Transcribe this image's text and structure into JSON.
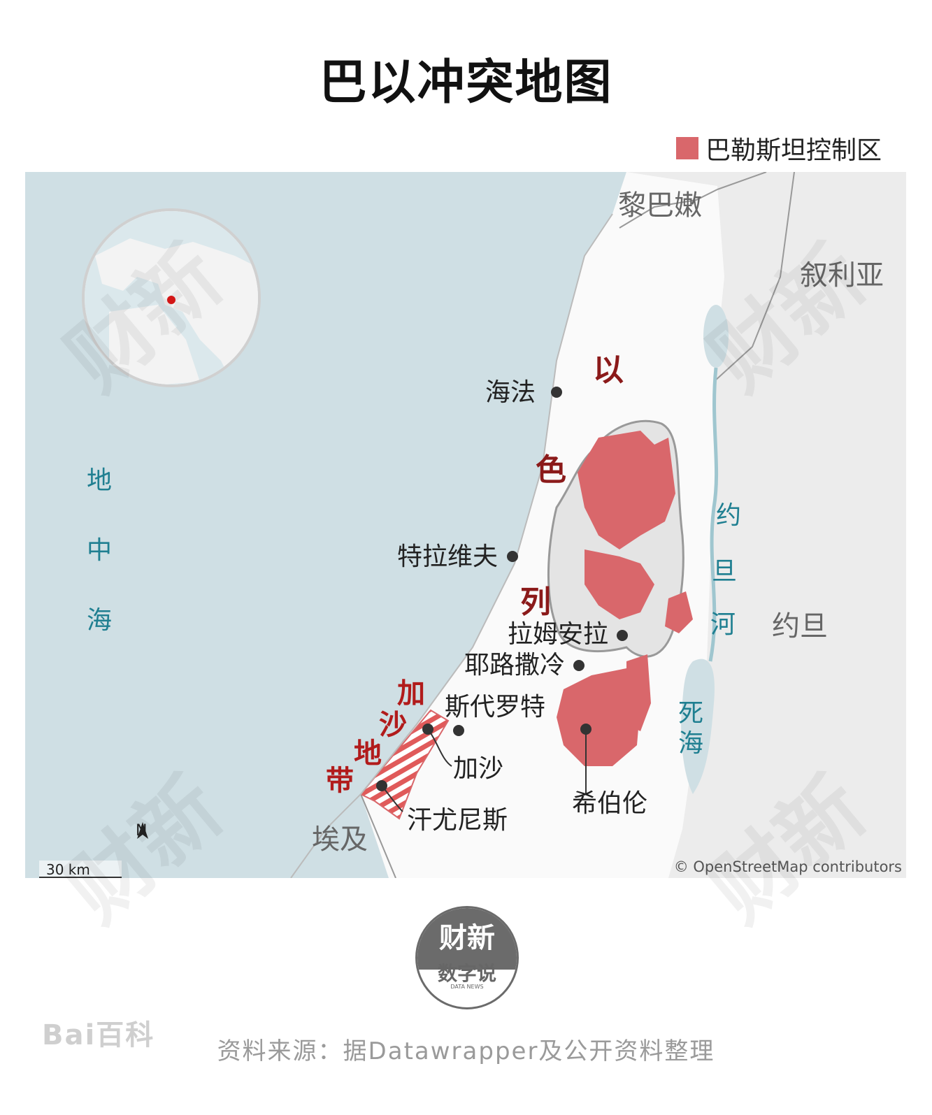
{
  "title": "巴以冲突地图",
  "legend": {
    "label": "巴勒斯坦控制区",
    "color": "#d9676b"
  },
  "colors": {
    "sea": "#cfdfe4",
    "land": "#ececec",
    "israel": "#f8f8f8",
    "palestine": "#d9676b",
    "city_dot": "#333333",
    "watermark": "#e6e6e6"
  },
  "map": {
    "countries": {
      "lebanon": "黎巴嫩",
      "syria": "叙利亚",
      "jordan": "约旦",
      "egypt": "埃及"
    },
    "israel_chars": [
      "以",
      "色",
      "列"
    ],
    "gaza_chars": [
      "加",
      "沙",
      "地",
      "带"
    ],
    "sea_chars": [
      "地",
      "中",
      "海"
    ],
    "jordan_river_chars": [
      "约",
      "旦",
      "河"
    ],
    "dead_sea_chars": [
      "死",
      "海"
    ],
    "cities": {
      "haifa": "海法",
      "telaviv": "特拉维夫",
      "ramallah": "拉姆安拉",
      "jerusalem": "耶路撒冷",
      "sderot": "斯代罗特",
      "gaza": "加沙",
      "khanyunis": "汗尤尼斯",
      "hebron": "希伯伦"
    },
    "scale_label": "30 km",
    "north_label": "N",
    "attribution": "© OpenStreetMap contributors",
    "globe_marker": "red-dot-icon"
  },
  "logo": {
    "top": "财新",
    "middle": "数字说",
    "sub": "DATA NEWS"
  },
  "baidu_watermark": "Bai百科",
  "caixin_watermark": "财新",
  "source": "资料来源：据Datawrapper及公开资料整理"
}
